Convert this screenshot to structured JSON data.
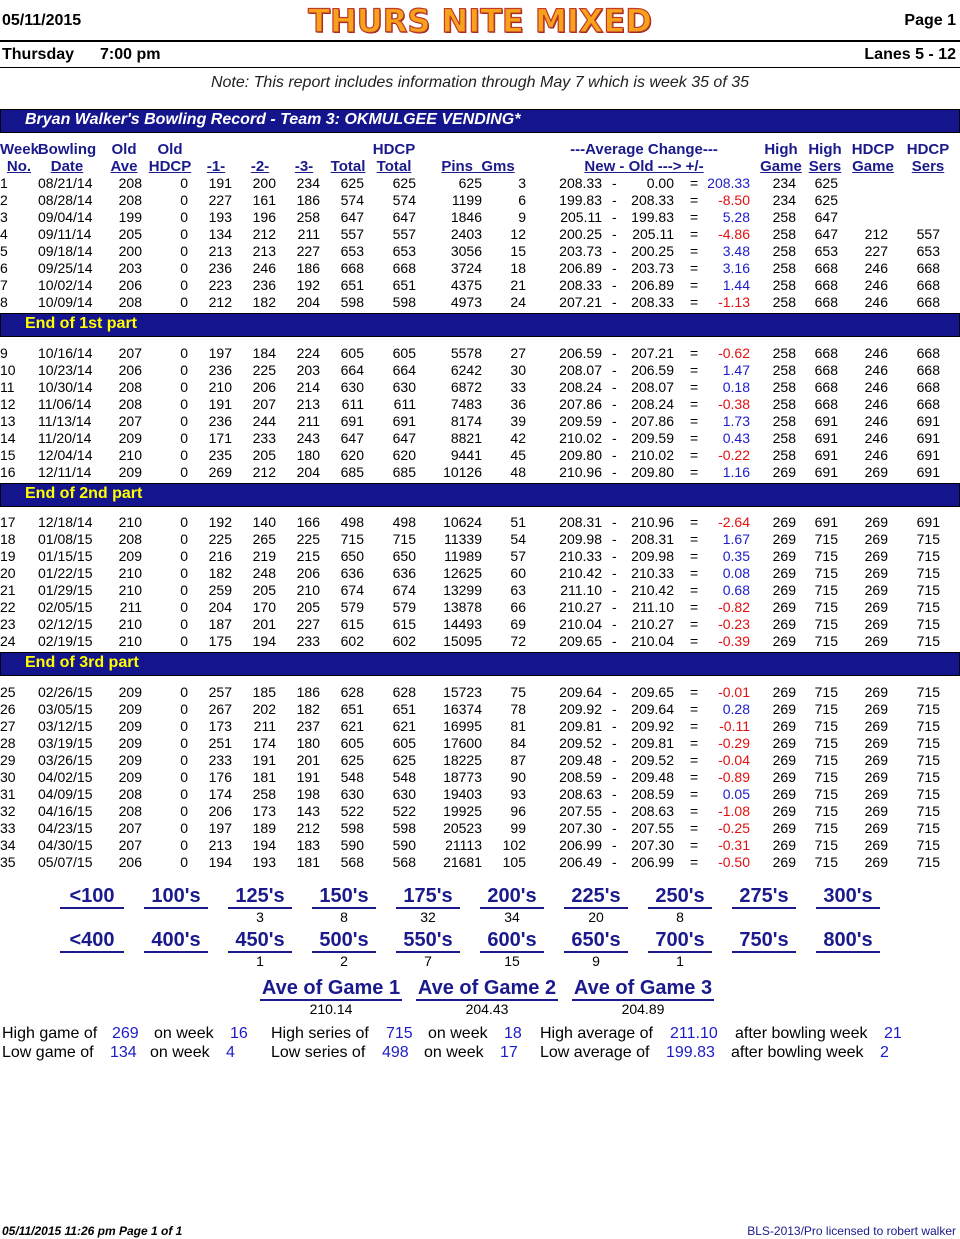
{
  "header": {
    "date": "05/11/2015",
    "title": "THURS NITE MIXED",
    "page": "Page 1",
    "day": "Thursday",
    "time": "7:00 pm",
    "lanes": "Lanes 5 - 12",
    "note": "Note: This report includes information through May 7   which is week 35 of 35"
  },
  "record_title": "Bryan Walker's Bowling Record  - Team 3: OKMULGEE VENDING*",
  "columns": {
    "week": [
      "Week",
      "No."
    ],
    "bowling_date": [
      "Bowling",
      "Date"
    ],
    "old_ave": [
      "Old",
      "Ave"
    ],
    "old_hdcp": [
      "Old",
      "HDCP"
    ],
    "g1": "-1-",
    "g2": "-2-",
    "g3": "-3-",
    "total": "Total",
    "hdcp_total": [
      "HDCP",
      "Total"
    ],
    "pins_gms": "Pins  Gms",
    "avg_change": [
      "---Average Change---",
      "New - Old ---> +/-"
    ],
    "high_game": [
      "High",
      "Game"
    ],
    "high_sers": [
      "High",
      "Sers"
    ],
    "hdcp_game": [
      "HDCP",
      "Game"
    ],
    "hdcp_sers": [
      "HDCP",
      "Sers"
    ]
  },
  "parts": [
    "End of 1st part",
    "End of 2nd part",
    "End of 3rd part"
  ],
  "rows": [
    [
      "1",
      "08/21/14",
      "208",
      "0",
      "191",
      "200",
      "234",
      "625",
      "625",
      "625",
      "3",
      "208.33",
      "0.00",
      "208.33",
      "234",
      "625",
      "",
      ""
    ],
    [
      "2",
      "08/28/14",
      "208",
      "0",
      "227",
      "161",
      "186",
      "574",
      "574",
      "1199",
      "6",
      "199.83",
      "208.33",
      "-8.50",
      "234",
      "625",
      "",
      ""
    ],
    [
      "3",
      "09/04/14",
      "199",
      "0",
      "193",
      "196",
      "258",
      "647",
      "647",
      "1846",
      "9",
      "205.11",
      "199.83",
      "5.28",
      "258",
      "647",
      "",
      ""
    ],
    [
      "4",
      "09/11/14",
      "205",
      "0",
      "134",
      "212",
      "211",
      "557",
      "557",
      "2403",
      "12",
      "200.25",
      "205.11",
      "-4.86",
      "258",
      "647",
      "212",
      "557"
    ],
    [
      "5",
      "09/18/14",
      "200",
      "0",
      "213",
      "213",
      "227",
      "653",
      "653",
      "3056",
      "15",
      "203.73",
      "200.25",
      "3.48",
      "258",
      "653",
      "227",
      "653"
    ],
    [
      "6",
      "09/25/14",
      "203",
      "0",
      "236",
      "246",
      "186",
      "668",
      "668",
      "3724",
      "18",
      "206.89",
      "203.73",
      "3.16",
      "258",
      "668",
      "246",
      "668"
    ],
    [
      "7",
      "10/02/14",
      "206",
      "0",
      "223",
      "236",
      "192",
      "651",
      "651",
      "4375",
      "21",
      "208.33",
      "206.89",
      "1.44",
      "258",
      "668",
      "246",
      "668"
    ],
    [
      "8",
      "10/09/14",
      "208",
      "0",
      "212",
      "182",
      "204",
      "598",
      "598",
      "4973",
      "24",
      "207.21",
      "208.33",
      "-1.13",
      "258",
      "668",
      "246",
      "668"
    ],
    [
      "9",
      "10/16/14",
      "207",
      "0",
      "197",
      "184",
      "224",
      "605",
      "605",
      "5578",
      "27",
      "206.59",
      "207.21",
      "-0.62",
      "258",
      "668",
      "246",
      "668"
    ],
    [
      "10",
      "10/23/14",
      "206",
      "0",
      "236",
      "225",
      "203",
      "664",
      "664",
      "6242",
      "30",
      "208.07",
      "206.59",
      "1.47",
      "258",
      "668",
      "246",
      "668"
    ],
    [
      "11",
      "10/30/14",
      "208",
      "0",
      "210",
      "206",
      "214",
      "630",
      "630",
      "6872",
      "33",
      "208.24",
      "208.07",
      "0.18",
      "258",
      "668",
      "246",
      "668"
    ],
    [
      "12",
      "11/06/14",
      "208",
      "0",
      "191",
      "207",
      "213",
      "611",
      "611",
      "7483",
      "36",
      "207.86",
      "208.24",
      "-0.38",
      "258",
      "668",
      "246",
      "668"
    ],
    [
      "13",
      "11/13/14",
      "207",
      "0",
      "236",
      "244",
      "211",
      "691",
      "691",
      "8174",
      "39",
      "209.59",
      "207.86",
      "1.73",
      "258",
      "691",
      "246",
      "691"
    ],
    [
      "14",
      "11/20/14",
      "209",
      "0",
      "171",
      "233",
      "243",
      "647",
      "647",
      "8821",
      "42",
      "210.02",
      "209.59",
      "0.43",
      "258",
      "691",
      "246",
      "691"
    ],
    [
      "15",
      "12/04/14",
      "210",
      "0",
      "235",
      "205",
      "180",
      "620",
      "620",
      "9441",
      "45",
      "209.80",
      "210.02",
      "-0.22",
      "258",
      "691",
      "246",
      "691"
    ],
    [
      "16",
      "12/11/14",
      "209",
      "0",
      "269",
      "212",
      "204",
      "685",
      "685",
      "10126",
      "48",
      "210.96",
      "209.80",
      "1.16",
      "269",
      "691",
      "269",
      "691"
    ],
    [
      "17",
      "12/18/14",
      "210",
      "0",
      "192",
      "140",
      "166",
      "498",
      "498",
      "10624",
      "51",
      "208.31",
      "210.96",
      "-2.64",
      "269",
      "691",
      "269",
      "691"
    ],
    [
      "18",
      "01/08/15",
      "208",
      "0",
      "225",
      "265",
      "225",
      "715",
      "715",
      "11339",
      "54",
      "209.98",
      "208.31",
      "1.67",
      "269",
      "715",
      "269",
      "715"
    ],
    [
      "19",
      "01/15/15",
      "209",
      "0",
      "216",
      "219",
      "215",
      "650",
      "650",
      "11989",
      "57",
      "210.33",
      "209.98",
      "0.35",
      "269",
      "715",
      "269",
      "715"
    ],
    [
      "20",
      "01/22/15",
      "210",
      "0",
      "182",
      "248",
      "206",
      "636",
      "636",
      "12625",
      "60",
      "210.42",
      "210.33",
      "0.08",
      "269",
      "715",
      "269",
      "715"
    ],
    [
      "21",
      "01/29/15",
      "210",
      "0",
      "259",
      "205",
      "210",
      "674",
      "674",
      "13299",
      "63",
      "211.10",
      "210.42",
      "0.68",
      "269",
      "715",
      "269",
      "715"
    ],
    [
      "22",
      "02/05/15",
      "211",
      "0",
      "204",
      "170",
      "205",
      "579",
      "579",
      "13878",
      "66",
      "210.27",
      "211.10",
      "-0.82",
      "269",
      "715",
      "269",
      "715"
    ],
    [
      "23",
      "02/12/15",
      "210",
      "0",
      "187",
      "201",
      "227",
      "615",
      "615",
      "14493",
      "69",
      "210.04",
      "210.27",
      "-0.23",
      "269",
      "715",
      "269",
      "715"
    ],
    [
      "24",
      "02/19/15",
      "210",
      "0",
      "175",
      "194",
      "233",
      "602",
      "602",
      "15095",
      "72",
      "209.65",
      "210.04",
      "-0.39",
      "269",
      "715",
      "269",
      "715"
    ],
    [
      "25",
      "02/26/15",
      "209",
      "0",
      "257",
      "185",
      "186",
      "628",
      "628",
      "15723",
      "75",
      "209.64",
      "209.65",
      "-0.01",
      "269",
      "715",
      "269",
      "715"
    ],
    [
      "26",
      "03/05/15",
      "209",
      "0",
      "267",
      "202",
      "182",
      "651",
      "651",
      "16374",
      "78",
      "209.92",
      "209.64",
      "0.28",
      "269",
      "715",
      "269",
      "715"
    ],
    [
      "27",
      "03/12/15",
      "209",
      "0",
      "173",
      "211",
      "237",
      "621",
      "621",
      "16995",
      "81",
      "209.81",
      "209.92",
      "-0.11",
      "269",
      "715",
      "269",
      "715"
    ],
    [
      "28",
      "03/19/15",
      "209",
      "0",
      "251",
      "174",
      "180",
      "605",
      "605",
      "17600",
      "84",
      "209.52",
      "209.81",
      "-0.29",
      "269",
      "715",
      "269",
      "715"
    ],
    [
      "29",
      "03/26/15",
      "209",
      "0",
      "233",
      "191",
      "201",
      "625",
      "625",
      "18225",
      "87",
      "209.48",
      "209.52",
      "-0.04",
      "269",
      "715",
      "269",
      "715"
    ],
    [
      "30",
      "04/02/15",
      "209",
      "0",
      "176",
      "181",
      "191",
      "548",
      "548",
      "18773",
      "90",
      "208.59",
      "209.48",
      "-0.89",
      "269",
      "715",
      "269",
      "715"
    ],
    [
      "31",
      "04/09/15",
      "208",
      "0",
      "174",
      "258",
      "198",
      "630",
      "630",
      "19403",
      "93",
      "208.63",
      "208.59",
      "0.05",
      "269",
      "715",
      "269",
      "715"
    ],
    [
      "32",
      "04/16/15",
      "208",
      "0",
      "206",
      "173",
      "143",
      "522",
      "522",
      "19925",
      "96",
      "207.55",
      "208.63",
      "-1.08",
      "269",
      "715",
      "269",
      "715"
    ],
    [
      "33",
      "04/23/15",
      "207",
      "0",
      "197",
      "189",
      "212",
      "598",
      "598",
      "20523",
      "99",
      "207.30",
      "207.55",
      "-0.25",
      "269",
      "715",
      "269",
      "715"
    ],
    [
      "34",
      "04/30/15",
      "207",
      "0",
      "213",
      "194",
      "183",
      "590",
      "590",
      "21113",
      "102",
      "206.99",
      "207.30",
      "-0.31",
      "269",
      "715",
      "269",
      "715"
    ],
    [
      "35",
      "05/07/15",
      "206",
      "0",
      "194",
      "193",
      "181",
      "568",
      "568",
      "21681",
      "105",
      "206.49",
      "206.99",
      "-0.50",
      "269",
      "715",
      "269",
      "715"
    ]
  ],
  "distribution_games": [
    {
      "label": "<100",
      "count": ""
    },
    {
      "label": "100's",
      "count": ""
    },
    {
      "label": "125's",
      "count": "3"
    },
    {
      "label": "150's",
      "count": "8"
    },
    {
      "label": "175's",
      "count": "32"
    },
    {
      "label": "200's",
      "count": "34"
    },
    {
      "label": "225's",
      "count": "20"
    },
    {
      "label": "250's",
      "count": "8"
    },
    {
      "label": "275's",
      "count": ""
    },
    {
      "label": "300's",
      "count": ""
    }
  ],
  "distribution_series": [
    {
      "label": "<400",
      "count": ""
    },
    {
      "label": "400's",
      "count": ""
    },
    {
      "label": "450's",
      "count": "1"
    },
    {
      "label": "500's",
      "count": "2"
    },
    {
      "label": "550's",
      "count": "7"
    },
    {
      "label": "600's",
      "count": "15"
    },
    {
      "label": "650's",
      "count": "9"
    },
    {
      "label": "700's",
      "count": "1"
    },
    {
      "label": "750's",
      "count": ""
    },
    {
      "label": "800's",
      "count": ""
    }
  ],
  "game_averages": [
    {
      "label": "Ave of Game 1",
      "value": "210.14"
    },
    {
      "label": "Ave of Game 2",
      "value": "204.43"
    },
    {
      "label": "Ave of Game 3",
      "value": "204.89"
    }
  ],
  "summary": {
    "high_game_label": "High game of",
    "high_game": "269",
    "high_game_week_label": "on week",
    "high_game_week": "16",
    "low_game_label": "Low game of",
    "low_game": "134",
    "low_game_week_label": "on week",
    "low_game_week": "4",
    "high_series_label": "High series of",
    "high_series": "715",
    "high_series_week_label": "on week",
    "high_series_week": "18",
    "low_series_label": "Low series of",
    "low_series": "498",
    "low_series_week_label": "on week",
    "low_series_week": "17",
    "high_avg_label": "High average of",
    "high_avg": "211.10",
    "high_avg_after_label": "after bowling week",
    "high_avg_week": "21",
    "low_avg_label": "Low average of",
    "low_avg": "199.83",
    "low_avg_after_label": "after bowling week",
    "low_avg_week": "2"
  },
  "footer": {
    "left": "05/11/2015  11:26 pm  Page 1 of 1",
    "right": "BLS-2013/Pro licensed to robert walker"
  }
}
